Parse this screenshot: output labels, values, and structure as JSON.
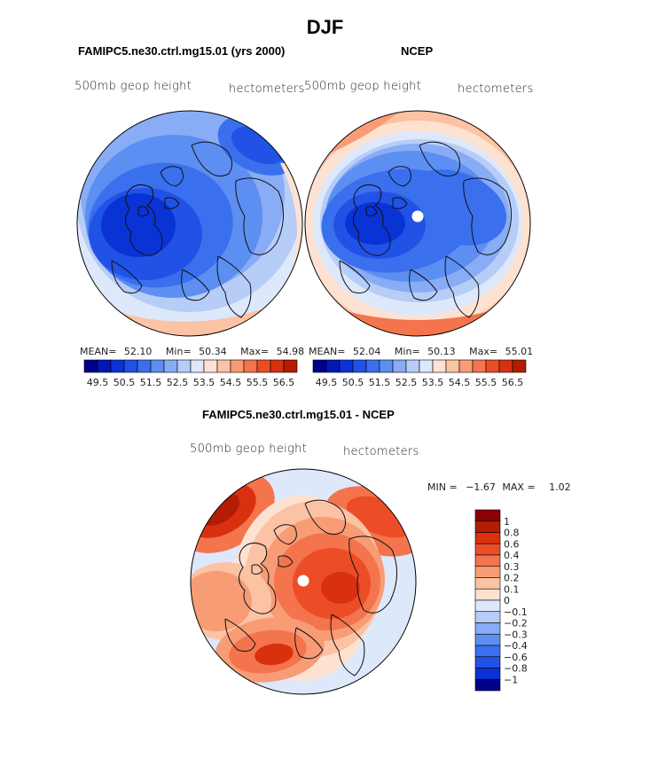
{
  "title": "DJF",
  "colors": {
    "scale": [
      "#00008b",
      "#0018b8",
      "#0a33d6",
      "#2052e6",
      "#3a70ee",
      "#5d8ef2",
      "#88acf5",
      "#b6cdf8",
      "#dde8fb",
      "#fde2d2",
      "#fcc2a4",
      "#f89c76",
      "#f3744d",
      "#ec4d27",
      "#d9310f",
      "#b51c04",
      "#8b0000"
    ],
    "coast": "#111111",
    "pole": "#ffffff"
  },
  "panels": {
    "model": {
      "title": "FAMIPC5.ne30.ctrl.mg15.01 (yrs 2000)",
      "variable": "500mb geop height",
      "units": "hectometers",
      "mean_label": "MEAN=",
      "mean": "52.10",
      "min_label": "Min=",
      "min": "50.34",
      "max_label": "Max=",
      "max": "54.98"
    },
    "obs": {
      "title": "NCEP",
      "variable": "500mb geop height",
      "units": "hectometers",
      "mean_label": "MEAN=",
      "mean": "52.04",
      "min_label": "Min=",
      "min": "50.13",
      "max_label": "Max=",
      "max": "55.01"
    },
    "diff": {
      "title": "FAMIPC5.ne30.ctrl.mg15.01 - NCEP",
      "variable": "500mb geop height",
      "units": "hectometers",
      "min_label": "MIN =",
      "min": "−1.67",
      "max_label": "MAX =",
      "max": "1.02"
    }
  },
  "chart_data": [
    {
      "type": "heatmap",
      "projection": "north polar stereographic",
      "title": "FAMIPC5.ne30.ctrl.mg15.01 (yrs 2000)",
      "variable": "500mb geop height",
      "units": "hectometers",
      "mean": 52.1,
      "min": 50.34,
      "max": 54.98,
      "colorbar": {
        "orientation": "horizontal",
        "levels": [
          49.5,
          50.5,
          51.5,
          52.5,
          53.5,
          54.5,
          55.5,
          56.5
        ],
        "labels": [
          "49.5",
          "50.5",
          "51.5",
          "52.5",
          "53.5",
          "54.5",
          "55.5",
          "56.5"
        ]
      }
    },
    {
      "type": "heatmap",
      "projection": "north polar stereographic",
      "title": "NCEP",
      "variable": "500mb geop height",
      "units": "hectometers",
      "mean": 52.04,
      "min": 50.13,
      "max": 55.01,
      "colorbar": {
        "orientation": "horizontal",
        "levels": [
          49.5,
          50.5,
          51.5,
          52.5,
          53.5,
          54.5,
          55.5,
          56.5
        ],
        "labels": [
          "49.5",
          "50.5",
          "51.5",
          "52.5",
          "53.5",
          "54.5",
          "55.5",
          "56.5"
        ]
      }
    },
    {
      "type": "heatmap",
      "projection": "north polar stereographic",
      "title": "FAMIPC5.ne30.ctrl.mg15.01 - NCEP",
      "variable": "500mb geop height",
      "units": "hectometers",
      "min": -1.67,
      "max": 1.02,
      "colorbar": {
        "orientation": "vertical",
        "levels": [
          1,
          0.8,
          0.6,
          0.4,
          0.3,
          0.2,
          0.1,
          0,
          -0.1,
          -0.2,
          -0.3,
          -0.4,
          -0.6,
          -0.8,
          -1
        ],
        "labels": [
          "1",
          "0.8",
          "0.6",
          "0.4",
          "0.3",
          "0.2",
          "0.1",
          "0",
          "−0.1",
          "−0.2",
          "−0.3",
          "−0.4",
          "−0.6",
          "−0.8",
          "−1"
        ]
      }
    }
  ]
}
